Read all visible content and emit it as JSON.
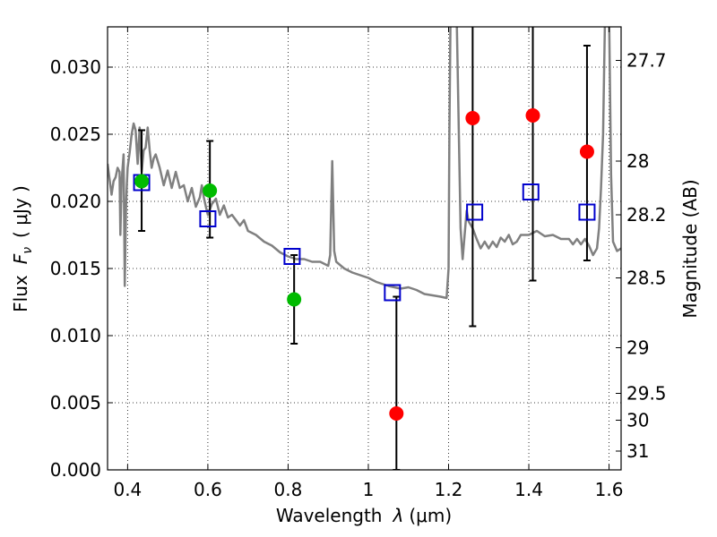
{
  "chart_data": {
    "type": "scatter",
    "xlabel_text": "Wavelength",
    "xlabel_symbol": "λ",
    "xlabel_unit": "(μm)",
    "ylabel_text": "Flux",
    "ylabel_symbol": "F",
    "ylabel_sub": "ν",
    "ylabel_unit": "( μJy )",
    "y2label": "Magnitude (AB)",
    "xlim": [
      0.35,
      1.63
    ],
    "ylim": [
      0.0,
      0.033
    ],
    "grid": true,
    "xticks": [
      {
        "value": 0.4,
        "label": "0.4"
      },
      {
        "value": 0.6,
        "label": "0.6"
      },
      {
        "value": 0.8,
        "label": "0.8"
      },
      {
        "value": 1.0,
        "label": "1"
      },
      {
        "value": 1.2,
        "label": "1.2"
      },
      {
        "value": 1.4,
        "label": "1.4"
      },
      {
        "value": 1.6,
        "label": "1.6"
      }
    ],
    "yticks": [
      {
        "value": 0.0,
        "label": "0.000"
      },
      {
        "value": 0.005,
        "label": "0.005"
      },
      {
        "value": 0.01,
        "label": "0.010"
      },
      {
        "value": 0.015,
        "label": "0.015"
      },
      {
        "value": 0.02,
        "label": "0.020"
      },
      {
        "value": 0.025,
        "label": "0.025"
      },
      {
        "value": 0.03,
        "label": "0.030"
      }
    ],
    "y2ticks": [
      {
        "flux": 0.0305,
        "label": "27.7"
      },
      {
        "flux": 0.023,
        "label": "28"
      },
      {
        "flux": 0.019,
        "label": "28.2"
      },
      {
        "flux": 0.0143,
        "label": "28.5"
      },
      {
        "flux": 0.0091,
        "label": "29"
      },
      {
        "flux": 0.0057,
        "label": "29.5"
      },
      {
        "flux": 0.0037,
        "label": "30"
      },
      {
        "flux": 0.0014,
        "label": "31"
      }
    ],
    "series": [
      {
        "name": "template_spectrum",
        "type": "line",
        "color": "#808080",
        "x": [
          0.35,
          0.36,
          0.365,
          0.37,
          0.375,
          0.38,
          0.382,
          0.385,
          0.39,
          0.393,
          0.396,
          0.398,
          0.4,
          0.405,
          0.41,
          0.415,
          0.42,
          0.425,
          0.43,
          0.435,
          0.44,
          0.445,
          0.45,
          0.455,
          0.46,
          0.465,
          0.47,
          0.475,
          0.48,
          0.49,
          0.5,
          0.51,
          0.52,
          0.53,
          0.54,
          0.55,
          0.56,
          0.57,
          0.58,
          0.585,
          0.59,
          0.595,
          0.6,
          0.61,
          0.62,
          0.63,
          0.64,
          0.65,
          0.66,
          0.67,
          0.68,
          0.69,
          0.7,
          0.72,
          0.74,
          0.76,
          0.78,
          0.8,
          0.82,
          0.84,
          0.86,
          0.88,
          0.9,
          0.905,
          0.91,
          0.915,
          0.92,
          0.94,
          0.96,
          0.98,
          1.0,
          1.02,
          1.05,
          1.08,
          1.1,
          1.12,
          1.14,
          1.16,
          1.18,
          1.195,
          1.2,
          1.202,
          1.205,
          1.21,
          1.215,
          1.22,
          1.23,
          1.235,
          1.24,
          1.245,
          1.25,
          1.26,
          1.27,
          1.28,
          1.29,
          1.3,
          1.31,
          1.32,
          1.33,
          1.34,
          1.35,
          1.36,
          1.37,
          1.38,
          1.4,
          1.42,
          1.44,
          1.46,
          1.48,
          1.5,
          1.51,
          1.52,
          1.53,
          1.54,
          1.55,
          1.56,
          1.57,
          1.575,
          1.58,
          1.585,
          1.59,
          1.595,
          1.6,
          1.605,
          1.61,
          1.62,
          1.63
        ],
        "y": [
          0.0228,
          0.0205,
          0.0215,
          0.0218,
          0.0225,
          0.0222,
          0.0175,
          0.0215,
          0.0235,
          0.0137,
          0.0195,
          0.0212,
          0.0225,
          0.0236,
          0.025,
          0.0258,
          0.0253,
          0.0228,
          0.0255,
          0.0222,
          0.0238,
          0.024,
          0.0255,
          0.0238,
          0.0225,
          0.0232,
          0.0235,
          0.023,
          0.0225,
          0.0212,
          0.0223,
          0.021,
          0.0222,
          0.021,
          0.0212,
          0.02,
          0.021,
          0.0196,
          0.0203,
          0.0212,
          0.0203,
          0.0196,
          0.019,
          0.0198,
          0.0202,
          0.019,
          0.0197,
          0.0188,
          0.019,
          0.0186,
          0.0182,
          0.0186,
          0.0178,
          0.0175,
          0.017,
          0.0167,
          0.0162,
          0.0159,
          0.0157,
          0.0157,
          0.0155,
          0.0155,
          0.0152,
          0.016,
          0.023,
          0.0163,
          0.0155,
          0.015,
          0.0147,
          0.0145,
          0.0143,
          0.014,
          0.0137,
          0.0135,
          0.0136,
          0.0134,
          0.0131,
          0.013,
          0.0129,
          0.0128,
          0.015,
          0.025,
          0.034,
          0.034,
          0.034,
          0.034,
          0.018,
          0.0157,
          0.0175,
          0.0193,
          0.0185,
          0.018,
          0.0172,
          0.0165,
          0.017,
          0.0165,
          0.017,
          0.0166,
          0.0173,
          0.017,
          0.0175,
          0.0168,
          0.017,
          0.0175,
          0.0175,
          0.0178,
          0.0174,
          0.0175,
          0.0172,
          0.0172,
          0.0168,
          0.0172,
          0.0168,
          0.0172,
          0.0167,
          0.016,
          0.0165,
          0.018,
          0.021,
          0.025,
          0.034,
          0.034,
          0.034,
          0.022,
          0.017,
          0.0163,
          0.0165
        ]
      },
      {
        "name": "model_fluxes",
        "type": "scatter",
        "marker": "open-square",
        "color": "#0000cc",
        "x": [
          0.435,
          0.6,
          0.81,
          1.06,
          1.265,
          1.405,
          1.545
        ],
        "y": [
          0.0214,
          0.0187,
          0.0159,
          0.0132,
          0.0192,
          0.0207,
          0.0192
        ]
      },
      {
        "name": "observed_hst",
        "type": "scatter",
        "marker": "filled-circle",
        "color": "#00bb00",
        "x": [
          0.435,
          0.605,
          0.815
        ],
        "y": [
          0.0215,
          0.0208,
          0.0127
        ],
        "yerr_low": [
          0.0178,
          0.0173,
          0.0094
        ],
        "yerr_high": [
          0.0253,
          0.0245,
          0.016
        ]
      },
      {
        "name": "observed_ir",
        "type": "scatter",
        "marker": "filled-circle",
        "color": "#ff0000",
        "x": [
          1.07,
          1.26,
          1.41,
          1.545
        ],
        "y": [
          0.0042,
          0.0262,
          0.0264,
          0.0237
        ],
        "yerr_low": [
          0.0,
          0.0107,
          0.0141,
          0.0156
        ],
        "yerr_high": [
          0.0129,
          0.034,
          0.034,
          0.0316
        ]
      }
    ]
  }
}
